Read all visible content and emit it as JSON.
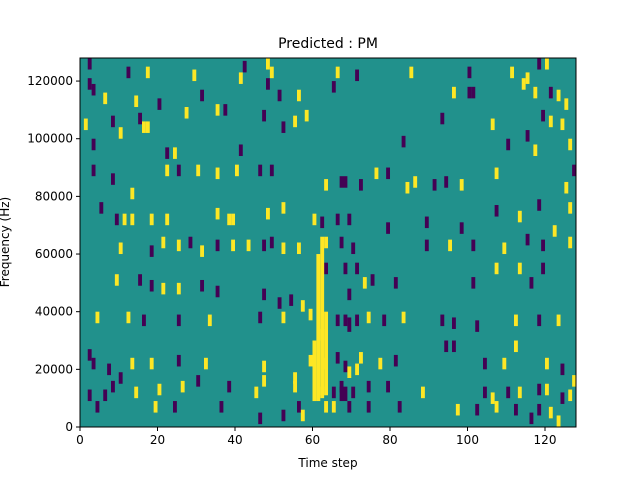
{
  "chart_data": {
    "type": "heatmap",
    "title": "Predicted : PM",
    "xlabel": "Time step",
    "ylabel": "Frequency (Hz)",
    "xlim": [
      0,
      128
    ],
    "ylim": [
      0,
      128000
    ],
    "xticks": [
      "0",
      "20",
      "40",
      "60",
      "80",
      "100",
      "120"
    ],
    "xtick_values": [
      0,
      20,
      40,
      60,
      80,
      100,
      120
    ],
    "yticks": [
      "0",
      "20000",
      "40000",
      "60000",
      "80000",
      "100000",
      "120000"
    ],
    "ytick_values": [
      0,
      20000,
      40000,
      60000,
      80000,
      100000,
      120000
    ],
    "grid": false,
    "legend": "none",
    "background_level": 0,
    "levels": {
      "-1": "#440154",
      "0": "#21918c",
      "1": "#fde725"
    },
    "cells": [
      [
        2,
        126000,
        -1
      ],
      [
        12,
        123000,
        -1
      ],
      [
        17,
        123000,
        1
      ],
      [
        29,
        122000,
        1
      ],
      [
        42,
        125000,
        -1
      ],
      [
        48,
        126000,
        1
      ],
      [
        49,
        123000,
        1
      ],
      [
        66,
        123000,
        1
      ],
      [
        71,
        122000,
        -1
      ],
      [
        85,
        123000,
        1
      ],
      [
        100,
        123000,
        -1
      ],
      [
        111,
        123000,
        1
      ],
      [
        115,
        121000,
        1
      ],
      [
        118,
        126000,
        -1
      ],
      [
        120,
        126000,
        1
      ],
      [
        2,
        119000,
        -1
      ],
      [
        3,
        117000,
        -1
      ],
      [
        6,
        114000,
        1
      ],
      [
        14,
        113000,
        1
      ],
      [
        20,
        112000,
        -1
      ],
      [
        31,
        115000,
        -1
      ],
      [
        41,
        121000,
        1
      ],
      [
        48,
        119000,
        -1
      ],
      [
        51,
        115000,
        -1
      ],
      [
        56,
        115000,
        1
      ],
      [
        65,
        118000,
        -1
      ],
      [
        96,
        116000,
        1
      ],
      [
        100,
        116000,
        -1
      ],
      [
        101,
        116000,
        -1
      ],
      [
        114,
        119000,
        1
      ],
      [
        117,
        116000,
        1
      ],
      [
        121,
        116000,
        -1
      ],
      [
        123,
        115000,
        1
      ],
      [
        125,
        112000,
        1
      ],
      [
        1,
        105000,
        1
      ],
      [
        3,
        98000,
        -1
      ],
      [
        8,
        106000,
        -1
      ],
      [
        10,
        102000,
        1
      ],
      [
        15,
        107000,
        -1
      ],
      [
        16,
        104000,
        1
      ],
      [
        17,
        104000,
        1
      ],
      [
        22,
        95000,
        -1
      ],
      [
        24,
        95000,
        1
      ],
      [
        27,
        109000,
        1
      ],
      [
        35,
        110000,
        1
      ],
      [
        37,
        110000,
        -1
      ],
      [
        41,
        96000,
        -1
      ],
      [
        47,
        108000,
        -1
      ],
      [
        52,
        104000,
        -1
      ],
      [
        55,
        106000,
        1
      ],
      [
        58,
        108000,
        1
      ],
      [
        83,
        99000,
        -1
      ],
      [
        93,
        107000,
        -1
      ],
      [
        106,
        105000,
        1
      ],
      [
        110,
        98000,
        -1
      ],
      [
        115,
        101000,
        -1
      ],
      [
        117,
        96000,
        1
      ],
      [
        119,
        108000,
        -1
      ],
      [
        121,
        106000,
        1
      ],
      [
        124,
        105000,
        1
      ],
      [
        126,
        98000,
        1
      ],
      [
        3,
        89000,
        -1
      ],
      [
        8,
        86000,
        -1
      ],
      [
        13,
        81000,
        1
      ],
      [
        22,
        89000,
        1
      ],
      [
        25,
        89000,
        -1
      ],
      [
        30,
        89000,
        1
      ],
      [
        35,
        88000,
        1
      ],
      [
        40,
        89000,
        1
      ],
      [
        46,
        89000,
        -1
      ],
      [
        49,
        89000,
        -1
      ],
      [
        63,
        84000,
        1
      ],
      [
        67,
        85000,
        -1
      ],
      [
        68,
        85000,
        -1
      ],
      [
        72,
        84000,
        -1
      ],
      [
        76,
        88000,
        1
      ],
      [
        79,
        88000,
        -1
      ],
      [
        84,
        83000,
        1
      ],
      [
        86,
        85000,
        1
      ],
      [
        91,
        84000,
        -1
      ],
      [
        94,
        85000,
        -1
      ],
      [
        98,
        84000,
        1
      ],
      [
        107,
        88000,
        1
      ],
      [
        125,
        83000,
        1
      ],
      [
        127,
        89000,
        -1
      ],
      [
        5,
        76000,
        -1
      ],
      [
        9,
        72000,
        -1
      ],
      [
        11,
        72000,
        1
      ],
      [
        13,
        72000,
        1
      ],
      [
        18,
        72000,
        1
      ],
      [
        22,
        72000,
        1
      ],
      [
        35,
        74000,
        1
      ],
      [
        38,
        72000,
        1
      ],
      [
        39,
        72000,
        1
      ],
      [
        48,
        74000,
        1
      ],
      [
        52,
        76000,
        1
      ],
      [
        60,
        72000,
        1
      ],
      [
        62,
        71000,
        -1
      ],
      [
        66,
        72000,
        -1
      ],
      [
        69,
        72000,
        -1
      ],
      [
        89,
        71000,
        -1
      ],
      [
        107,
        75000,
        -1
      ],
      [
        113,
        73000,
        1
      ],
      [
        118,
        77000,
        -1
      ],
      [
        126,
        76000,
        1
      ],
      [
        10,
        62000,
        1
      ],
      [
        18,
        61000,
        -1
      ],
      [
        21,
        64000,
        1
      ],
      [
        25,
        63000,
        1
      ],
      [
        28,
        64000,
        -1
      ],
      [
        31,
        61000,
        1
      ],
      [
        35,
        63000,
        -1
      ],
      [
        39,
        63000,
        1
      ],
      [
        43,
        63000,
        1
      ],
      [
        47,
        63000,
        -1
      ],
      [
        49,
        64000,
        -1
      ],
      [
        52,
        62000,
        1
      ],
      [
        56,
        62000,
        1
      ],
      [
        63,
        64000,
        1
      ],
      [
        67,
        64000,
        -1
      ],
      [
        70,
        62000,
        -1
      ],
      [
        79,
        69000,
        -1
      ],
      [
        89,
        63000,
        -1
      ],
      [
        95,
        63000,
        1
      ],
      [
        98,
        69000,
        -1
      ],
      [
        101,
        63000,
        -1
      ],
      [
        109,
        62000,
        1
      ],
      [
        115,
        65000,
        -1
      ],
      [
        119,
        63000,
        -1
      ],
      [
        122,
        68000,
        1
      ],
      [
        126,
        64000,
        1
      ],
      [
        9,
        51000,
        1
      ],
      [
        15,
        51000,
        -1
      ],
      [
        18,
        49000,
        -1
      ],
      [
        21,
        48000,
        1
      ],
      [
        25,
        48000,
        1
      ],
      [
        31,
        49000,
        -1
      ],
      [
        35,
        47000,
        -1
      ],
      [
        47,
        46000,
        -1
      ],
      [
        51,
        43000,
        -1
      ],
      [
        54,
        44000,
        -1
      ],
      [
        57,
        42000,
        1
      ],
      [
        63,
        55000,
        -1
      ],
      [
        68,
        55000,
        -1
      ],
      [
        69,
        46000,
        -1
      ],
      [
        71,
        55000,
        -1
      ],
      [
        73,
        50000,
        1
      ],
      [
        75,
        51000,
        -1
      ],
      [
        81,
        50000,
        -1
      ],
      [
        101,
        50000,
        -1
      ],
      [
        107,
        55000,
        1
      ],
      [
        113,
        55000,
        1
      ],
      [
        116,
        50000,
        -1
      ],
      [
        119,
        55000,
        -1
      ],
      [
        4,
        38000,
        1
      ],
      [
        12,
        38000,
        1
      ],
      [
        16,
        37000,
        -1
      ],
      [
        25,
        37000,
        -1
      ],
      [
        33,
        37000,
        1
      ],
      [
        46,
        38000,
        -1
      ],
      [
        52,
        38000,
        1
      ],
      [
        59,
        39000,
        1
      ],
      [
        62,
        32000,
        1
      ],
      [
        66,
        37000,
        -1
      ],
      [
        68,
        37000,
        -1
      ],
      [
        71,
        37000,
        -1
      ],
      [
        74,
        38000,
        1
      ],
      [
        78,
        37000,
        -1
      ],
      [
        83,
        38000,
        1
      ],
      [
        93,
        37000,
        -1
      ],
      [
        96,
        36000,
        -1
      ],
      [
        102,
        35000,
        -1
      ],
      [
        112,
        37000,
        1
      ],
      [
        118,
        37000,
        -1
      ],
      [
        123,
        37000,
        1
      ],
      [
        2,
        25000,
        -1
      ],
      [
        3,
        22000,
        -1
      ],
      [
        7,
        20000,
        -1
      ],
      [
        10,
        17000,
        -1
      ],
      [
        13,
        22000,
        1
      ],
      [
        18,
        22000,
        1
      ],
      [
        25,
        23000,
        -1
      ],
      [
        32,
        22000,
        1
      ],
      [
        47,
        21000,
        1
      ],
      [
        55,
        17000,
        1
      ],
      [
        63,
        22000,
        1
      ],
      [
        66,
        24000,
        -1
      ],
      [
        68,
        21000,
        -1
      ],
      [
        69,
        19000,
        1
      ],
      [
        71,
        20000,
        1
      ],
      [
        72,
        24000,
        1
      ],
      [
        77,
        22000,
        1
      ],
      [
        81,
        23000,
        -1
      ],
      [
        94,
        28000,
        -1
      ],
      [
        96,
        28000,
        -1
      ],
      [
        104,
        22000,
        -1
      ],
      [
        109,
        22000,
        1
      ],
      [
        112,
        28000,
        1
      ],
      [
        120,
        22000,
        1
      ],
      [
        124,
        20000,
        -1
      ],
      [
        127,
        16000,
        1
      ],
      [
        2,
        11000,
        -1
      ],
      [
        6,
        11000,
        -1
      ],
      [
        8,
        14000,
        -1
      ],
      [
        14,
        12000,
        1
      ],
      [
        20,
        13000,
        1
      ],
      [
        26,
        14000,
        1
      ],
      [
        30,
        16000,
        -1
      ],
      [
        38,
        14000,
        -1
      ],
      [
        45,
        12000,
        1
      ],
      [
        47,
        16000,
        1
      ],
      [
        55,
        14000,
        1
      ],
      [
        62,
        12000,
        1
      ],
      [
        65,
        12000,
        -1
      ],
      [
        67,
        14000,
        -1
      ],
      [
        70,
        12000,
        -1
      ],
      [
        74,
        14000,
        -1
      ],
      [
        79,
        14000,
        -1
      ],
      [
        88,
        12000,
        1
      ],
      [
        104,
        12000,
        -1
      ],
      [
        106,
        10000,
        1
      ],
      [
        110,
        12000,
        -1
      ],
      [
        113,
        12000,
        1
      ],
      [
        118,
        13000,
        -1
      ],
      [
        120,
        13000,
        1
      ],
      [
        124,
        10000,
        -1
      ],
      [
        126,
        11000,
        1
      ],
      [
        4,
        7000,
        -1
      ],
      [
        19,
        7000,
        1
      ],
      [
        24,
        7000,
        -1
      ],
      [
        36,
        7000,
        -1
      ],
      [
        46,
        3000,
        -1
      ],
      [
        52,
        4000,
        -1
      ],
      [
        56,
        7000,
        -1
      ],
      [
        57,
        4000,
        1
      ],
      [
        63,
        7000,
        1
      ],
      [
        65,
        7000,
        1
      ],
      [
        69,
        7000,
        -1
      ],
      [
        74,
        7000,
        -1
      ],
      [
        82,
        7000,
        -1
      ],
      [
        97,
        6000,
        1
      ],
      [
        102,
        6000,
        -1
      ],
      [
        107,
        7000,
        1
      ],
      [
        112,
        6000,
        -1
      ],
      [
        116,
        3000,
        -1
      ],
      [
        118,
        6000,
        -1
      ],
      [
        121,
        5000,
        1
      ],
      [
        123,
        2000,
        1
      ]
    ],
    "streaks": [
      {
        "x": 61,
        "y_from": 9000,
        "y_to": 60000,
        "value": 1
      },
      {
        "x": 62,
        "y_from": 11000,
        "y_to": 66000,
        "value": 1
      },
      {
        "x": 63,
        "y_from": 11000,
        "y_to": 40000,
        "value": 1
      },
      {
        "x": 60,
        "y_from": 9000,
        "y_to": 30000,
        "value": 1
      },
      {
        "x": 59,
        "y_from": 21000,
        "y_to": 25000,
        "value": 1
      },
      {
        "x": 67,
        "y_from": 9000,
        "y_to": 14000,
        "value": -1
      },
      {
        "x": 68,
        "y_from": 9000,
        "y_to": 14000,
        "value": -1
      },
      {
        "x": 69,
        "y_from": 33000,
        "y_to": 38000,
        "value": -1
      }
    ]
  }
}
